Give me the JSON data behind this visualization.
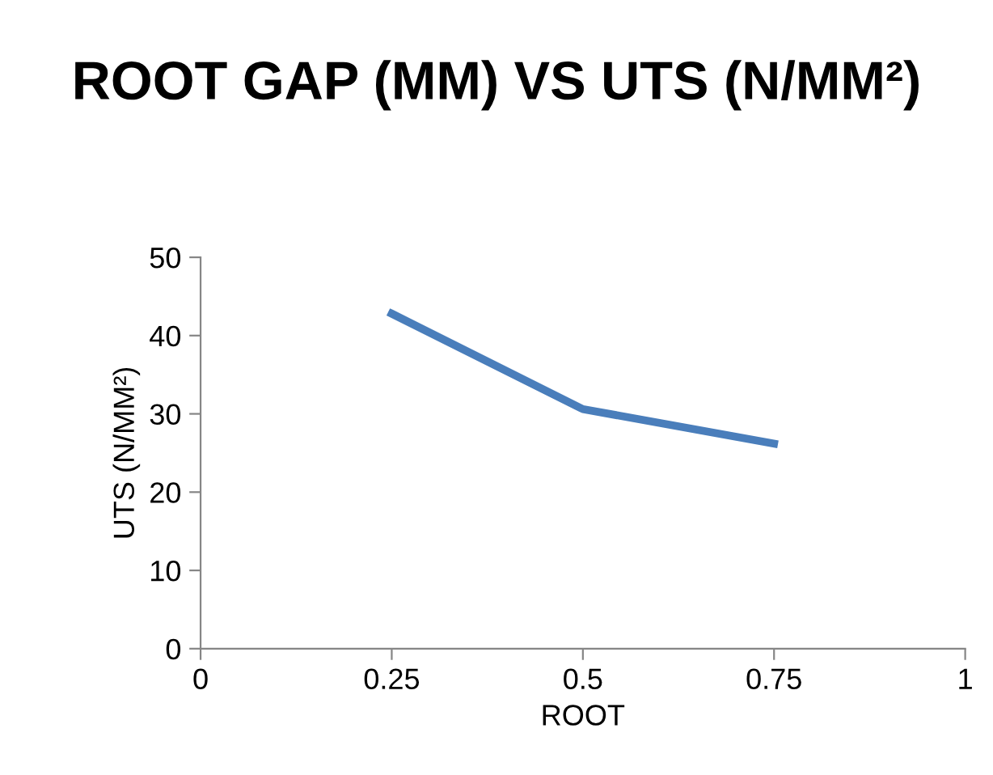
{
  "chart_data": {
    "type": "line",
    "title": "ROOT GAP (MM) VS UTS (N/MM²)",
    "xlabel": "ROOT",
    "ylabel": "UTS (N/MM²)",
    "x": [
      0.25,
      0.5,
      0.75
    ],
    "series": [
      {
        "color": "#4a7ebb",
        "values": [
          42.8,
          30.6,
          26.2
        ]
      }
    ],
    "xlim": [
      0,
      1
    ],
    "xticks": [
      0,
      0.25,
      0.5,
      0.75,
      1
    ],
    "ylim": [
      0,
      50
    ],
    "yticks": [
      0,
      10,
      20,
      30,
      40,
      50
    ],
    "grid": false,
    "legend": false,
    "marker": "none",
    "line_style": "solid"
  }
}
